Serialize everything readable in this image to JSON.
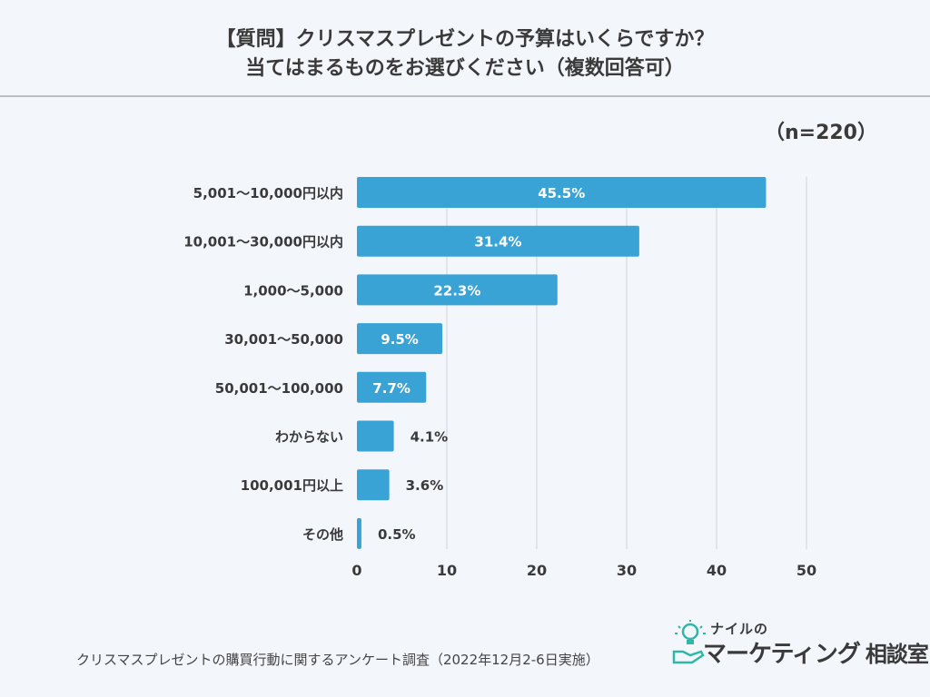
{
  "title_line1": "【質問】クリスマスプレゼントの予算はいくらですか？",
  "title_line2": "当てはまるものをお選びください（複数回答可）",
  "sample_size": "（n=220）",
  "footer": "クリスマスプレゼントの購買行動に関するアンケート調査（2022年12月2-6日実施）",
  "brand": {
    "top": "ナイルの",
    "main": "マーケティング",
    "sub": "相談室"
  },
  "colors": {
    "bar": "#3aa3d6",
    "grid": "#d9dee6",
    "text": "#3a3a3a",
    "label_inside": "#ffffff"
  },
  "chart_data": {
    "type": "bar",
    "orientation": "horizontal",
    "categories": [
      "5,001〜10,000円以内",
      "10,001〜30,000円以内",
      "1,000〜5,000",
      "30,001〜50,000",
      "50,001〜100,000",
      "わからない",
      "100,001円以上",
      "その他"
    ],
    "values": [
      45.5,
      31.4,
      22.3,
      9.5,
      7.7,
      4.1,
      3.6,
      0.5
    ],
    "value_labels": [
      "45.5%",
      "31.4%",
      "22.3%",
      "9.5%",
      "7.7%",
      "4.1%",
      "3.6%",
      "0.5%"
    ],
    "xlim": [
      0,
      50
    ],
    "xticks": [
      0,
      10,
      20,
      30,
      40,
      50
    ],
    "xtick_labels": [
      "0",
      "10",
      "20",
      "30",
      "40",
      "50"
    ],
    "grid": true,
    "unit": "%"
  }
}
